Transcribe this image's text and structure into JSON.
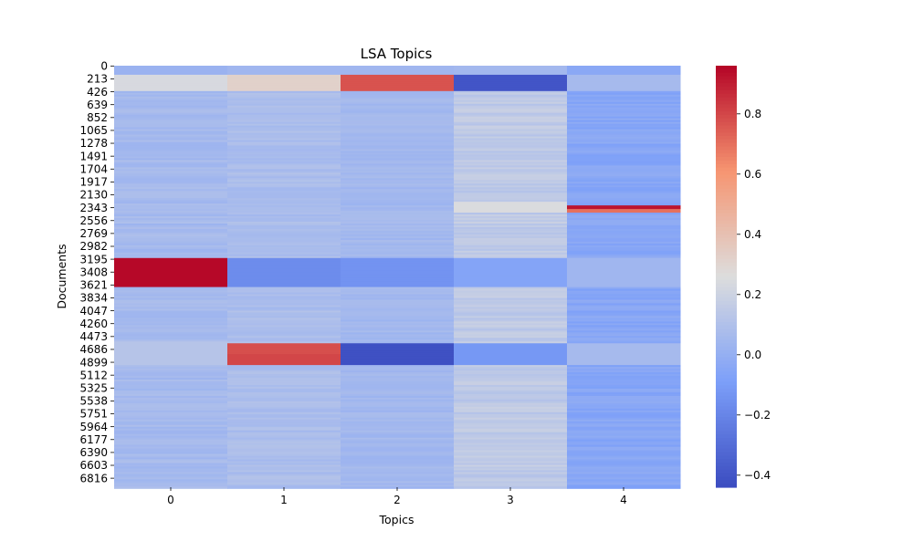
{
  "chart_data": {
    "type": "heatmap",
    "title": "LSA Topics",
    "xlabel": "Topics",
    "ylabel": "Documents",
    "x_categories": [
      "0",
      "1",
      "2",
      "3",
      "4"
    ],
    "y_tick_labels": [
      "0",
      "213",
      "426",
      "639",
      "852",
      "1065",
      "1278",
      "1491",
      "1704",
      "1917",
      "2130",
      "2343",
      "2556",
      "2769",
      "2982",
      "3195",
      "3408",
      "3621",
      "3834",
      "4047",
      "4260",
      "4473",
      "4686",
      "4899",
      "5112",
      "5325",
      "5538",
      "5751",
      "5964",
      "6177",
      "6390",
      "6603",
      "6816"
    ],
    "n_documents": 6970,
    "colormap": "coolwarm",
    "value_range": [
      -0.44,
      0.96
    ],
    "colorbar_ticks": [
      {
        "value": 0.8,
        "label": "0.8"
      },
      {
        "value": 0.6,
        "label": "0.6"
      },
      {
        "value": 0.4,
        "label": "0.4"
      },
      {
        "value": 0.2,
        "label": "0.2"
      },
      {
        "value": 0.0,
        "label": "0.0"
      },
      {
        "value": -0.2,
        "label": "−0.2"
      },
      {
        "value": -0.4,
        "label": "−0.4"
      }
    ],
    "columns": [
      {
        "topic": "0",
        "base_value": 0.06,
        "variation": 0.06,
        "bands": [
          {
            "start": 0,
            "end": 160,
            "value": 0.02
          },
          {
            "start": 160,
            "end": 420,
            "value": 0.24
          },
          {
            "start": 3195,
            "end": 3660,
            "value": 0.95
          },
          {
            "start": 4550,
            "end": 4950,
            "value": 0.12
          }
        ]
      },
      {
        "topic": "1",
        "base_value": 0.08,
        "variation": 0.06,
        "bands": [
          {
            "start": 0,
            "end": 160,
            "value": 0.04
          },
          {
            "start": 160,
            "end": 420,
            "value": 0.32
          },
          {
            "start": 3195,
            "end": 3660,
            "value": -0.17
          },
          {
            "start": 4590,
            "end": 4770,
            "value": 0.78
          },
          {
            "start": 4770,
            "end": 4950,
            "value": 0.8
          }
        ]
      },
      {
        "topic": "2",
        "base_value": 0.05,
        "variation": 0.05,
        "bands": [
          {
            "start": 0,
            "end": 160,
            "value": 0.04
          },
          {
            "start": 160,
            "end": 420,
            "value": 0.77
          },
          {
            "start": 3195,
            "end": 3660,
            "value": -0.14
          },
          {
            "start": 4590,
            "end": 4950,
            "value": -0.42
          }
        ]
      },
      {
        "topic": "3",
        "base_value": 0.15,
        "variation": 0.08,
        "bands": [
          {
            "start": 0,
            "end": 160,
            "value": 0.05
          },
          {
            "start": 160,
            "end": 420,
            "value": -0.4
          },
          {
            "start": 2260,
            "end": 2430,
            "value": 0.25
          },
          {
            "start": 3195,
            "end": 3660,
            "value": -0.06
          },
          {
            "start": 4590,
            "end": 4950,
            "value": -0.12
          }
        ]
      },
      {
        "topic": "4",
        "base_value": -0.05,
        "variation": 0.07,
        "bands": [
          {
            "start": 0,
            "end": 160,
            "value": -0.04
          },
          {
            "start": 160,
            "end": 420,
            "value": 0.06
          },
          {
            "start": 2300,
            "end": 2380,
            "value": 0.92
          },
          {
            "start": 2380,
            "end": 2430,
            "value": 0.7
          },
          {
            "start": 3195,
            "end": 3660,
            "value": 0.04
          },
          {
            "start": 4590,
            "end": 4950,
            "value": 0.06
          }
        ]
      }
    ]
  }
}
